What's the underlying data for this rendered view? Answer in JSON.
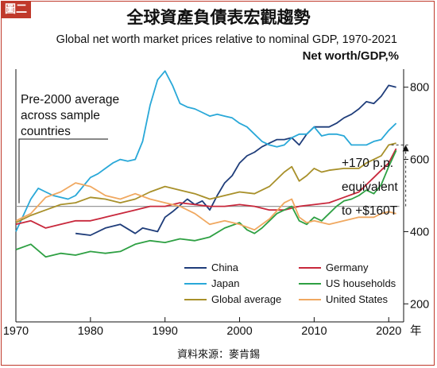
{
  "header": {
    "badge": "圖二",
    "title": "全球資產負債表宏觀趨勢",
    "subtitle": "Global net worth market prices relative to nominal GDP, 1970-2021",
    "unit": "Net worth/GDP,%"
  },
  "source": "資料來源：麥肯錫",
  "chart_data": {
    "type": "line",
    "title": "全球資產負債表宏觀趨勢",
    "subtitle": "Global net worth market prices relative to nominal GDP, 1970-2021",
    "ylabel": "Net worth/GDP,%",
    "x_unit_label": "年",
    "xlim": [
      1970,
      2022
    ],
    "ylim": [
      150,
      850
    ],
    "x_ticks": [
      1970,
      1980,
      1990,
      2000,
      2010,
      2020
    ],
    "y_ticks": [
      200,
      400,
      600,
      800
    ],
    "grid": false,
    "legend_placement": "bottom-right",
    "reference_line": {
      "label": "Pre-2000 average across sample countries",
      "label_lines": [
        "Pre-2000 average",
        "across sample",
        "countries"
      ],
      "y": 470,
      "x_range": [
        1970,
        2021
      ]
    },
    "annotation": {
      "lines": [
        "+170 p.p.",
        "equivalent",
        "to +$160T"
      ],
      "from": 470,
      "to": 640,
      "x": 2021
    },
    "series": [
      {
        "name": "China",
        "color": "#1f3d7a",
        "x": [
          1978,
          1980,
          1982,
          1984,
          1986,
          1987,
          1989,
          1990,
          1991,
          1993,
          1994,
          1995,
          1996,
          1997,
          1998,
          1999,
          2000,
          2001,
          2002,
          2003,
          2004,
          2005,
          2006,
          2007,
          2008,
          2009,
          2010,
          2011,
          2012,
          2013,
          2014,
          2015,
          2016,
          2017,
          2018,
          2019,
          2020,
          2021
        ],
        "values": [
          395,
          390,
          410,
          420,
          395,
          410,
          400,
          440,
          455,
          490,
          475,
          485,
          460,
          500,
          535,
          555,
          590,
          610,
          620,
          635,
          645,
          655,
          655,
          660,
          640,
          670,
          690,
          690,
          690,
          700,
          715,
          725,
          740,
          760,
          755,
          775,
          805,
          800
        ]
      },
      {
        "name": "Japan",
        "color": "#29a8d8",
        "x": [
          1970,
          1971,
          1972,
          1973,
          1974,
          1975,
          1976,
          1977,
          1978,
          1979,
          1980,
          1981,
          1982,
          1983,
          1984,
          1985,
          1986,
          1987,
          1988,
          1989,
          1990,
          1991,
          1992,
          1993,
          1994,
          1995,
          1996,
          1997,
          1998,
          1999,
          2000,
          2001,
          2002,
          2003,
          2004,
          2005,
          2006,
          2007,
          2008,
          2009,
          2010,
          2011,
          2012,
          2013,
          2014,
          2015,
          2016,
          2017,
          2018,
          2019,
          2020,
          2021
        ],
        "values": [
          400,
          445,
          490,
          520,
          510,
          500,
          495,
          490,
          500,
          525,
          550,
          560,
          575,
          590,
          600,
          595,
          600,
          650,
          750,
          820,
          845,
          805,
          755,
          745,
          740,
          730,
          720,
          725,
          720,
          715,
          700,
          690,
          670,
          650,
          640,
          635,
          640,
          660,
          670,
          670,
          690,
          665,
          670,
          670,
          665,
          640,
          640,
          640,
          650,
          655,
          680,
          700
        ]
      },
      {
        "name": "Germany",
        "color": "#c8283c",
        "x": [
          1970,
          1972,
          1974,
          1976,
          1978,
          1980,
          1982,
          1984,
          1986,
          1988,
          1990,
          1992,
          1994,
          1996,
          1998,
          2000,
          2002,
          2004,
          2006,
          2008,
          2010,
          2012,
          2014,
          2016,
          2017,
          2018,
          2019,
          2020,
          2021
        ],
        "values": [
          420,
          430,
          410,
          420,
          430,
          430,
          440,
          450,
          460,
          470,
          470,
          480,
          475,
          470,
          470,
          475,
          470,
          460,
          460,
          470,
          475,
          480,
          495,
          510,
          530,
          550,
          570,
          590,
          630
        ]
      },
      {
        "name": "US households",
        "color": "#2ea043",
        "x": [
          1970,
          1972,
          1974,
          1976,
          1978,
          1980,
          1982,
          1984,
          1986,
          1988,
          1990,
          1992,
          1994,
          1996,
          1998,
          2000,
          2001,
          2002,
          2003,
          2004,
          2005,
          2006,
          2007,
          2008,
          2009,
          2010,
          2011,
          2012,
          2013,
          2014,
          2015,
          2016,
          2017,
          2018,
          2019,
          2020,
          2021
        ],
        "values": [
          350,
          365,
          330,
          340,
          335,
          345,
          340,
          345,
          365,
          375,
          370,
          380,
          375,
          385,
          410,
          425,
          405,
          395,
          410,
          430,
          450,
          460,
          470,
          430,
          420,
          440,
          430,
          450,
          470,
          485,
          490,
          500,
          515,
          505,
          530,
          580,
          625
        ]
      },
      {
        "name": "Global average",
        "color": "#a8902a",
        "x": [
          1970,
          1972,
          1974,
          1976,
          1978,
          1980,
          1982,
          1984,
          1986,
          1988,
          1990,
          1992,
          1994,
          1996,
          1998,
          2000,
          2002,
          2004,
          2006,
          2007,
          2008,
          2009,
          2010,
          2011,
          2012,
          2014,
          2016,
          2017,
          2018,
          2019,
          2020,
          2021
        ],
        "values": [
          425,
          445,
          460,
          475,
          480,
          495,
          490,
          480,
          490,
          510,
          525,
          515,
          505,
          490,
          500,
          510,
          505,
          525,
          565,
          580,
          540,
          555,
          575,
          565,
          570,
          575,
          575,
          590,
          600,
          610,
          640,
          645
        ]
      },
      {
        "name": "United States",
        "color": "#f0a860",
        "x": [
          1970,
          1972,
          1974,
          1976,
          1978,
          1980,
          1982,
          1984,
          1986,
          1988,
          1990,
          1992,
          1994,
          1996,
          1998,
          2000,
          2002,
          2004,
          2006,
          2007,
          2008,
          2009,
          2010,
          2012,
          2014,
          2016,
          2018,
          2019,
          2020,
          2021
        ],
        "values": [
          430,
          450,
          495,
          510,
          535,
          525,
          500,
          490,
          505,
          490,
          480,
          470,
          450,
          420,
          430,
          420,
          405,
          435,
          480,
          490,
          440,
          425,
          430,
          420,
          430,
          440,
          440,
          450,
          455,
          450
        ]
      }
    ]
  }
}
